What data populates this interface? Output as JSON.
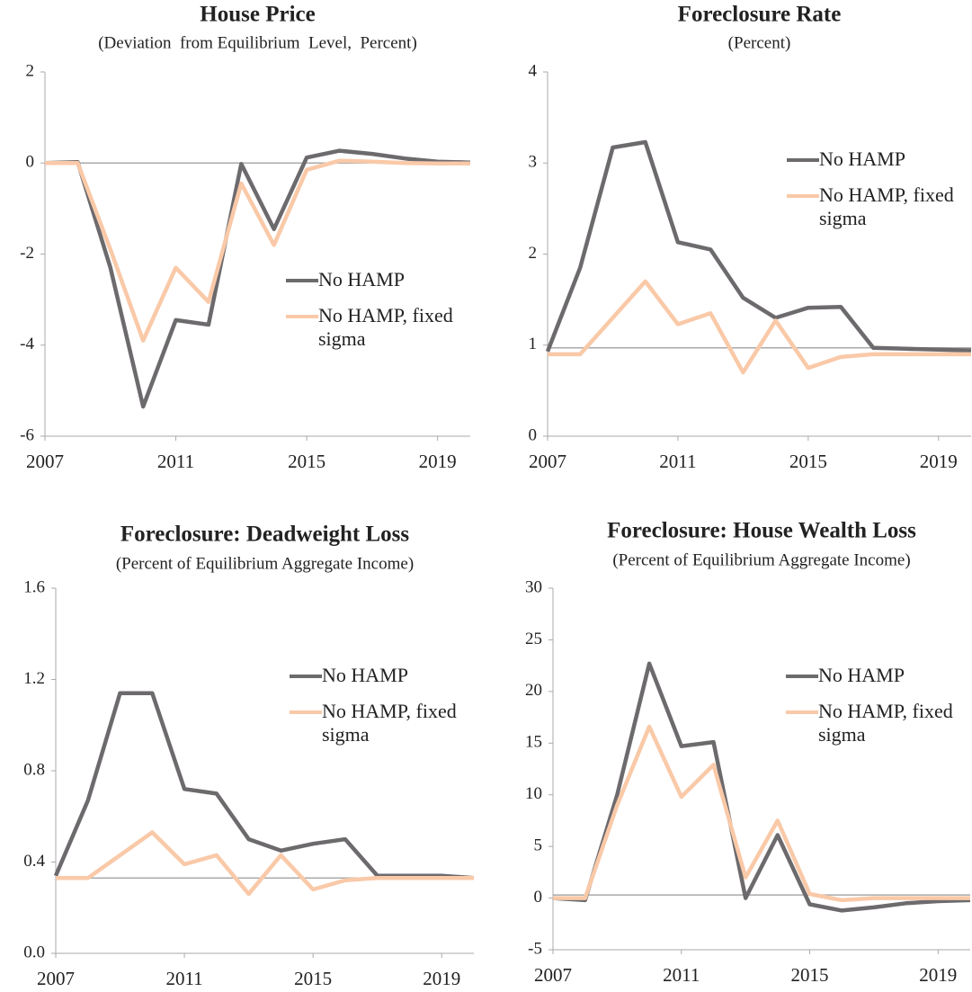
{
  "chart_data": [
    {
      "type": "line",
      "title": "House Price",
      "subtitle": "(Deviation  from Equilibrium  Level,  Percent)",
      "x": [
        2007,
        2008,
        2009,
        2010,
        2011,
        2012,
        2013,
        2014,
        2015,
        2016,
        2017,
        2018,
        2019,
        2020
      ],
      "series": [
        {
          "name": "No HAMP",
          "color": "#6d6a6d",
          "values": [
            0,
            0.02,
            -2.3,
            -5.35,
            -3.45,
            -3.55,
            -0.02,
            -1.45,
            0.12,
            0.27,
            0.2,
            0.1,
            0.03,
            0.01
          ]
        },
        {
          "name": "No HAMP, fixed sigma",
          "color": "#f9c9a8",
          "values": [
            0,
            0,
            -1.9,
            -3.9,
            -2.3,
            -3.05,
            -0.45,
            -1.8,
            -0.15,
            0.05,
            0.03,
            0,
            -0.01,
            -0.01
          ]
        }
      ],
      "xlim": [
        2007,
        2020
      ],
      "xticks": [
        2007,
        2011,
        2015,
        2019
      ],
      "ylim": [
        -6,
        2
      ],
      "yticks": [
        -6,
        -4,
        -2,
        0,
        2
      ],
      "hline": 0,
      "legend": "center-right"
    },
    {
      "type": "line",
      "title": "Foreclosure Rate",
      "subtitle": "(Percent)",
      "x": [
        2007,
        2008,
        2009,
        2010,
        2011,
        2012,
        2013,
        2014,
        2015,
        2016,
        2017,
        2018,
        2019,
        2020
      ],
      "series": [
        {
          "name": "No HAMP",
          "color": "#6d6a6d",
          "values": [
            0.93,
            1.85,
            3.17,
            3.23,
            2.13,
            2.05,
            1.52,
            1.3,
            1.41,
            1.42,
            0.97,
            0.96,
            0.95,
            0.94
          ]
        },
        {
          "name": "No HAMP, fixed sigma",
          "color": "#f9c9a8",
          "values": [
            0.9,
            0.9,
            1.3,
            1.7,
            1.23,
            1.35,
            0.7,
            1.27,
            0.75,
            0.87,
            0.9,
            0.9,
            0.9,
            0.9
          ]
        }
      ],
      "xlim": [
        2007,
        2020
      ],
      "xticks": [
        2007,
        2011,
        2015,
        2019
      ],
      "ylim": [
        0,
        4
      ],
      "yticks": [
        0,
        1,
        2,
        3,
        4
      ],
      "hline": 0.97,
      "legend": "upper-right"
    },
    {
      "type": "line",
      "title": "Foreclosure: Deadweight Loss",
      "subtitle": "(Percent of Equilibrium Aggregate Income)",
      "x": [
        2007,
        2008,
        2009,
        2010,
        2011,
        2012,
        2013,
        2014,
        2015,
        2016,
        2017,
        2018,
        2019,
        2020
      ],
      "series": [
        {
          "name": "No HAMP",
          "color": "#6d6a6d",
          "values": [
            0.34,
            0.67,
            1.14,
            1.14,
            0.72,
            0.7,
            0.5,
            0.45,
            0.48,
            0.5,
            0.34,
            0.34,
            0.34,
            0.33
          ]
        },
        {
          "name": "No HAMP, fixed sigma",
          "color": "#f9c9a8",
          "values": [
            0.33,
            0.33,
            0.43,
            0.53,
            0.39,
            0.43,
            0.26,
            0.43,
            0.28,
            0.32,
            0.33,
            0.33,
            0.33,
            0.33
          ]
        }
      ],
      "xlim": [
        2007,
        2020
      ],
      "xticks": [
        2007,
        2011,
        2015,
        2019
      ],
      "ylim": [
        0,
        1.6
      ],
      "yticks": [
        {
          "value": 0,
          "label": "0.0"
        },
        0.4,
        0.8,
        1.2,
        1.6
      ],
      "hline": 0.33,
      "legend": "upper-right"
    },
    {
      "type": "line",
      "title": "Foreclosure: House Wealth Loss",
      "subtitle": "(Percent of Equilibrium Aggregate Income)",
      "x": [
        2007,
        2008,
        2009,
        2010,
        2011,
        2012,
        2013,
        2014,
        2015,
        2016,
        2017,
        2018,
        2019,
        2020
      ],
      "series": [
        {
          "name": "No HAMP",
          "color": "#6d6a6d",
          "values": [
            0,
            -0.2,
            10,
            22.7,
            14.7,
            15.1,
            0,
            6.1,
            -0.6,
            -1.2,
            -0.9,
            -0.5,
            -0.3,
            -0.2
          ]
        },
        {
          "name": "No HAMP, fixed sigma",
          "color": "#f9c9a8",
          "values": [
            0,
            0,
            9,
            16.6,
            9.8,
            12.9,
            2,
            7.5,
            0.4,
            -0.2,
            0,
            0,
            0,
            0
          ]
        }
      ],
      "xlim": [
        2007,
        2020
      ],
      "xticks": [
        2007,
        2011,
        2015,
        2019
      ],
      "ylim": [
        -5,
        30
      ],
      "yticks": [
        -5,
        0,
        5,
        10,
        15,
        20,
        25,
        30
      ],
      "hline": 0.3,
      "legend": "upper-right"
    }
  ]
}
